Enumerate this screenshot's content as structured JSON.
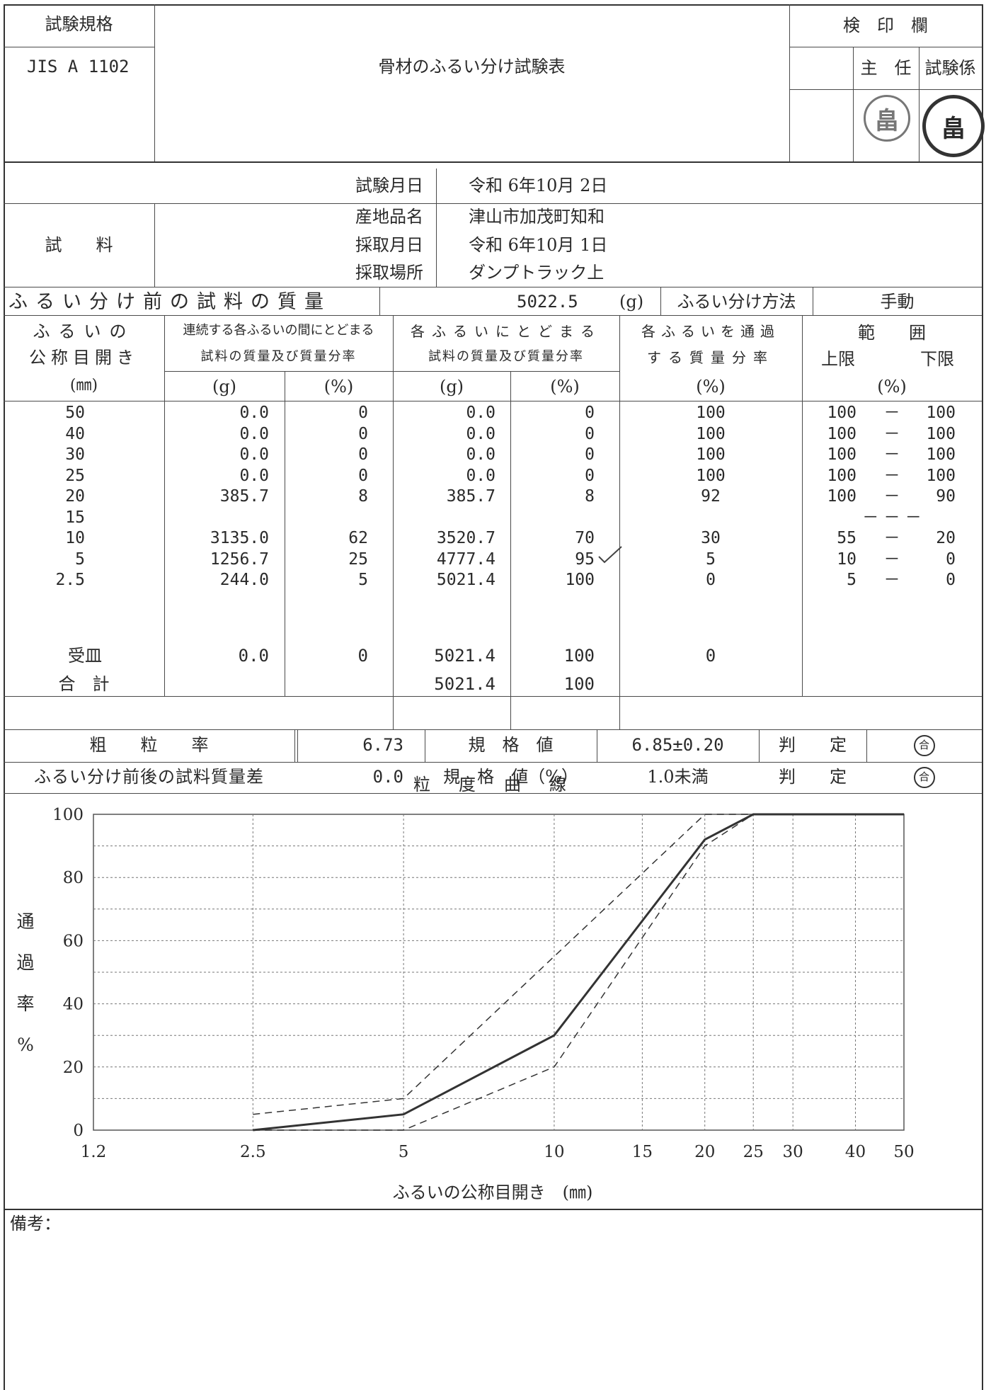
{
  "header": {
    "std_label": "試験規格",
    "std_value": "JIS A 1102",
    "title": "骨材のふるい分け試験表",
    "inspect_label": "検　印　欄",
    "chief_label": "主　任",
    "tester_label": "試験係"
  },
  "info": {
    "test_date_label": "試験月日",
    "test_date": "令和 6年10月 2日",
    "sample_label": "試　　料",
    "origin_label": "産地品名",
    "origin": "津山市加茂町知和",
    "sample_date_label": "採取月日",
    "sample_date": "令和 6年10月 1日",
    "place_label": "採取場所",
    "place": "ダンプトラック上",
    "mass_label": "ふるい分け前の試料の質量",
    "mass_value": "5022.5",
    "mass_unit": "(g)",
    "method_label": "ふるい分け方法",
    "method_value": "手動"
  },
  "table": {
    "h_sieve_1": "ふるいの",
    "h_sieve_2": "公称目開き",
    "h_sieve_3": "(㎜)",
    "h_between_1": "連続する各ふるいの間にとどまる",
    "h_between_2": "試料の質量及び質量分率",
    "h_retained_1": "各ふるいにとどまる",
    "h_retained_2": "試料の質量及び質量分率",
    "h_pass_1": "各ふるいを通過",
    "h_pass_2": "する質量分率",
    "h_range_1": "範　　囲",
    "h_range_upper": "上限",
    "h_range_lower": "下限",
    "unit_g": "(g)",
    "unit_pct": "(%)",
    "rows": [
      {
        "sieve": "50",
        "bm": "0.0",
        "bp": "0",
        "rm": "0.0",
        "rp": "0",
        "pass": "100",
        "up": "100",
        "dash": "－",
        "low": "100"
      },
      {
        "sieve": "40",
        "bm": "0.0",
        "bp": "0",
        "rm": "0.0",
        "rp": "0",
        "pass": "100",
        "up": "100",
        "dash": "－",
        "low": "100"
      },
      {
        "sieve": "30",
        "bm": "0.0",
        "bp": "0",
        "rm": "0.0",
        "rp": "0",
        "pass": "100",
        "up": "100",
        "dash": "－",
        "low": "100"
      },
      {
        "sieve": "25",
        "bm": "0.0",
        "bp": "0",
        "rm": "0.0",
        "rp": "0",
        "pass": "100",
        "up": "100",
        "dash": "－",
        "low": "100"
      },
      {
        "sieve": "20",
        "bm": "385.7",
        "bp": "8",
        "rm": "385.7",
        "rp": "8",
        "pass": "92",
        "up": "100",
        "dash": "－",
        "low": "90"
      },
      {
        "sieve": "15",
        "bm": "",
        "bp": "",
        "rm": "",
        "rp": "",
        "pass": "",
        "up": "",
        "dash": "－ － －",
        "low": ""
      },
      {
        "sieve": "10",
        "bm": "3135.0",
        "bp": "62",
        "rm": "3520.7",
        "rp": "70",
        "pass": "30",
        "up": "55",
        "dash": "－",
        "low": "20"
      },
      {
        "sieve": "5",
        "bm": "1256.7",
        "bp": "25",
        "rm": "4777.4",
        "rp": "95",
        "pass": "5",
        "up": "10",
        "dash": "－",
        "low": "0"
      },
      {
        "sieve": "2.5",
        "bm": "244.0",
        "bp": "5",
        "rm": "5021.4",
        "rp": "100",
        "pass": "0",
        "up": "5",
        "dash": "－",
        "low": "0"
      }
    ],
    "pan": {
      "sieve": "受皿",
      "bm": "0.0",
      "bp": "0",
      "rm": "5021.4",
      "rp": "100",
      "pass": "0"
    },
    "total": {
      "label": "合　計",
      "rm": "5021.4",
      "rp": "100"
    }
  },
  "summary": {
    "fm_label": "粗　　粒　　率",
    "fm_value": "6.73",
    "spec_label": "規　格　値",
    "spec_value": "6.85±0.20",
    "judge_label": "判　　定",
    "judge_value": "合",
    "diff_label": "ふるい分け前後の試料質量差",
    "diff_value": "0.0",
    "spec2_label": "規　格　値（%）",
    "spec2_value": "1.0未満",
    "judge2_label": "判　　定",
    "judge2_value": "合"
  },
  "chart_data": {
    "type": "line",
    "title": "粒　度　曲　線",
    "xlabel": "ふるいの公称目開き　(㎜)",
    "ylabel": "通過率%",
    "ylabel_chars": [
      "通",
      "過",
      "率",
      "%"
    ],
    "x_ticks": [
      "1.2",
      "2.5",
      "5",
      "10",
      "15",
      "20",
      "25",
      "30",
      "40",
      "50"
    ],
    "y_ticks": [
      "0",
      "20",
      "40",
      "60",
      "80",
      "100"
    ],
    "ylim": [
      0,
      100
    ],
    "x_scale": "log",
    "series": [
      {
        "style": "solid",
        "x": [
          2.5,
          5,
          10,
          20,
          25,
          50
        ],
        "y": [
          0,
          5,
          30,
          92,
          100,
          100
        ]
      },
      {
        "style": "dashed",
        "x": [
          2.5,
          5,
          10,
          20,
          25
        ],
        "y": [
          5,
          10,
          55,
          100,
          100
        ]
      },
      {
        "style": "dashed",
        "x": [
          2.5,
          5,
          10,
          20,
          25
        ],
        "y": [
          0,
          0,
          20,
          90,
          100
        ]
      }
    ]
  },
  "remarks": {
    "label": "備考："
  }
}
